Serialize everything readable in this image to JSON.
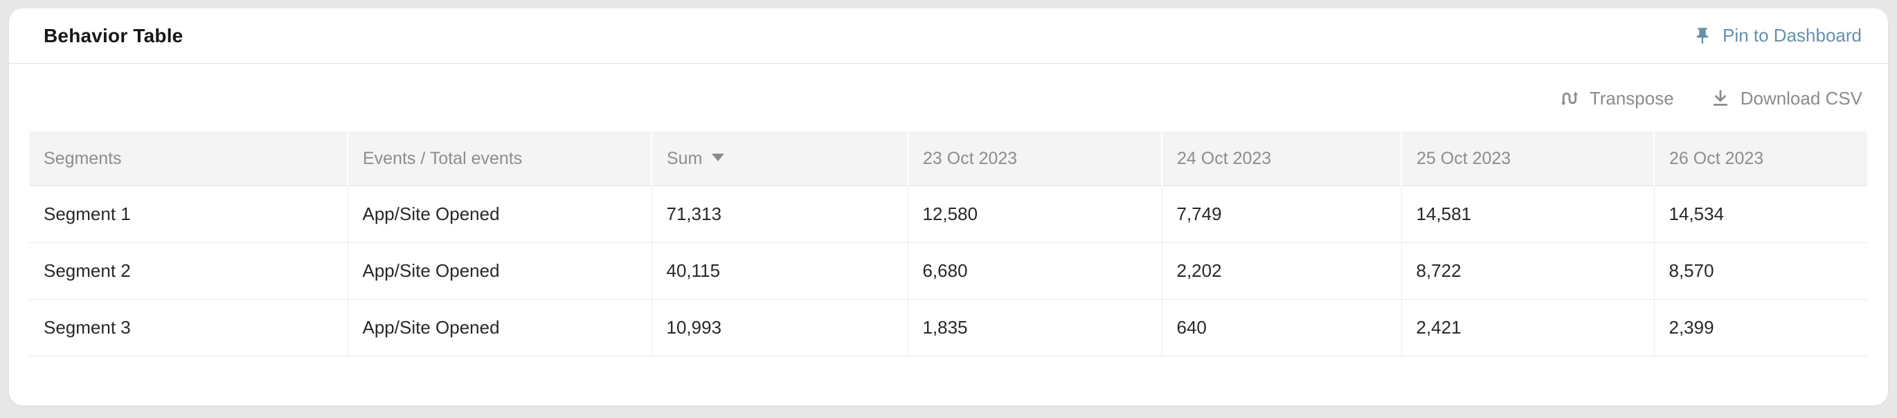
{
  "card": {
    "title": "Behavior Table",
    "pin_button": {
      "label": "Pin to Dashboard",
      "color": "#6590aa"
    },
    "toolbar": {
      "transpose_label": "Transpose",
      "download_label": "Download CSV",
      "icon_color": "#8b8b8b"
    }
  },
  "table": {
    "columns": [
      {
        "label": "Segments",
        "sortable": false
      },
      {
        "label": "Events / Total events",
        "sortable": false
      },
      {
        "label": "Sum",
        "sortable": true
      },
      {
        "label": "23 Oct 2023",
        "sortable": false
      },
      {
        "label": "24 Oct 2023",
        "sortable": false
      },
      {
        "label": "25 Oct 2023",
        "sortable": false
      },
      {
        "label": "26 Oct 2023",
        "sortable": false
      }
    ],
    "rows": [
      {
        "cells": [
          "Segment 1",
          "App/Site Opened",
          "71,313",
          "12,580",
          "7,749",
          "14,581",
          "14,534"
        ]
      },
      {
        "cells": [
          "Segment 2",
          "App/Site Opened",
          "40,115",
          "6,680",
          "2,202",
          "8,722",
          "8,570"
        ]
      },
      {
        "cells": [
          "Segment 3",
          "App/Site Opened",
          "10,993",
          "1,835",
          "640",
          "2,421",
          "2,399"
        ]
      }
    ]
  },
  "colors": {
    "page_background": "#e8e8e8",
    "card_background": "#ffffff",
    "header_row_background": "#f4f4f4",
    "header_text": "#8d8d8d",
    "cell_text": "#27282b",
    "pin_accent": "#6590aa",
    "toolbar_text": "#8b8b8b"
  }
}
